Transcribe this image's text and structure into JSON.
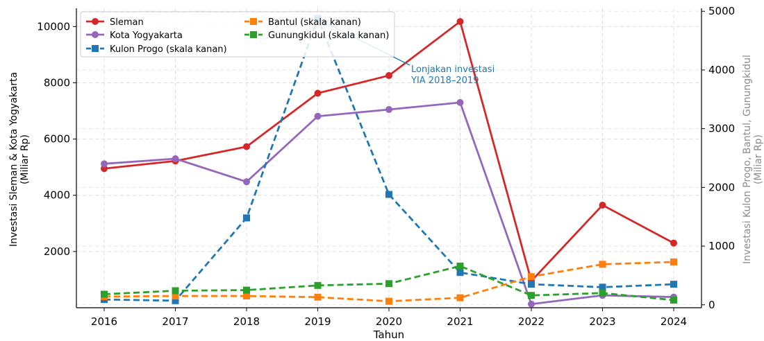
{
  "chart_data": {
    "type": "line",
    "x": [
      "2016",
      "2017",
      "2018",
      "2019",
      "2020",
      "2021",
      "2022",
      "2023",
      "2024"
    ],
    "xlabel": "Tahun",
    "ylabel_left_line1": "Investasi Sleman & Kota Yogyakarta",
    "ylabel_left_line2": "(Miliar Rp)",
    "ylabel_right_line1": "Investasi Kulon Progo, Bantul, Gunungkidul",
    "ylabel_right_line2": "(Miliar Rp)",
    "ylim_left": [
      0,
      10650
    ],
    "ylim_right": [
      -50,
      5050
    ],
    "yticks_left": [
      2000,
      4000,
      6000,
      8000,
      10000
    ],
    "yticks_right": [
      0,
      1000,
      2000,
      3000,
      4000,
      5000
    ],
    "grid": true,
    "legend_position": "top-left",
    "series": [
      {
        "name": "Sleman",
        "axis": "left",
        "color": "#d62728",
        "dash": "solid",
        "marker": "circle",
        "values": [
          4950,
          5220,
          5730,
          7630,
          8260,
          10180,
          950,
          3650,
          2300
        ]
      },
      {
        "name": "Kota Yogyakarta",
        "axis": "left",
        "color": "#9467bd",
        "dash": "solid",
        "marker": "circle",
        "values": [
          5120,
          5300,
          4480,
          6810,
          7050,
          7300,
          130,
          440,
          380
        ]
      },
      {
        "name": "Kulon Progo (skala kanan)",
        "axis": "right",
        "color": "#1f77b4",
        "dash": "dashed",
        "marker": "square",
        "values": [
          90,
          70,
          1480,
          4880,
          1880,
          550,
          350,
          300,
          350
        ]
      },
      {
        "name": "Bantul (skala kanan)",
        "axis": "right",
        "color": "#ff7f0e",
        "dash": "dashed",
        "marker": "square",
        "values": [
          140,
          150,
          150,
          130,
          60,
          120,
          480,
          690,
          730
        ]
      },
      {
        "name": "Gunungkidul (skala kanan)",
        "axis": "right",
        "color": "#2ca02c",
        "dash": "dashed",
        "marker": "square",
        "values": [
          180,
          240,
          250,
          330,
          360,
          660,
          160,
          200,
          80
        ]
      }
    ],
    "annotation": {
      "line1": "Lonjakan investasi",
      "line2": "YIA 2018–2019",
      "color": "#1f77b4",
      "target_series": "Kulon Progo (skala kanan)",
      "target_x": "2019"
    }
  }
}
